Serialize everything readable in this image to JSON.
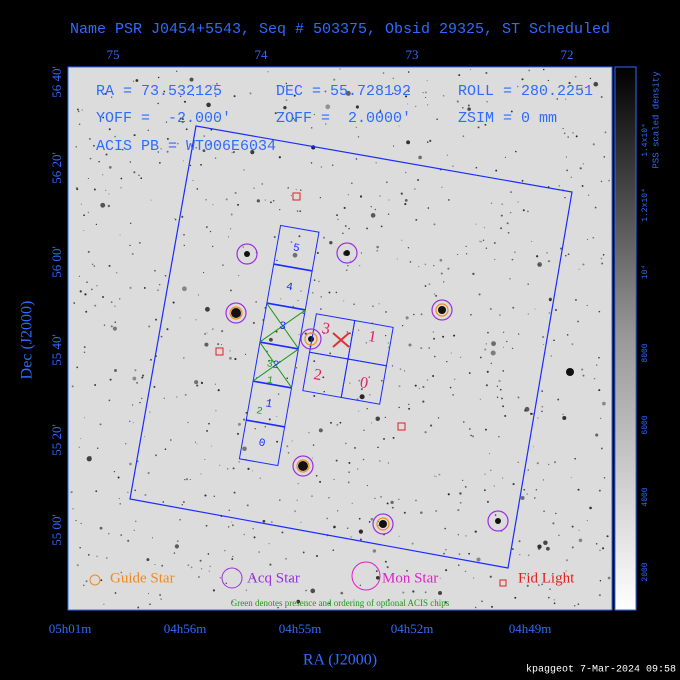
{
  "title": "Name PSR J0454+5543, Seq # 503375, Obsid 29325, ST Scheduled",
  "header": {
    "ra": "RA = 73.532125",
    "dec": "DEC = 55.728192",
    "roll": "ROLL = 280.2251",
    "yoff": "YOFF =  -2.000'",
    "zoff": "ZOFF =  2.0000'",
    "zsim": "ZSIM = 0 mm",
    "acis_pb": "ACIS PB = WT006E6034"
  },
  "top_ticks": [
    "75",
    "74",
    "73",
    "72"
  ],
  "left_ticks": [
    "56 40'",
    "56 20'",
    "56 00'",
    "55 40'",
    "55 20'",
    "55 00'"
  ],
  "bottom_ticks": [
    "05h01m",
    "04h56m",
    "04h55m",
    "04h52m",
    "04h49m"
  ],
  "x_label": "RA (J2000)",
  "y_label": "Dec (J2000)",
  "colorbar": {
    "label": "PSS scaled density",
    "ticks": [
      "2000",
      "4000",
      "6000",
      "8000",
      "10⁴",
      "1.2x10⁴",
      "1.4x10⁴"
    ]
  },
  "chips": {
    "s": [
      "0",
      "1",
      "2",
      "3",
      "4",
      "5"
    ],
    "i": [
      "3",
      "1",
      "2",
      "0"
    ],
    "optional": [
      "1",
      "2",
      "3"
    ]
  },
  "legend": [
    "Guide Star",
    "Acq Star",
    "Mon Star",
    "Fid Light"
  ],
  "note": "Green denotes presence and ordering of optional ACIS chips",
  "footer": "kpaggeot  7-Mar-2024 09:58"
}
